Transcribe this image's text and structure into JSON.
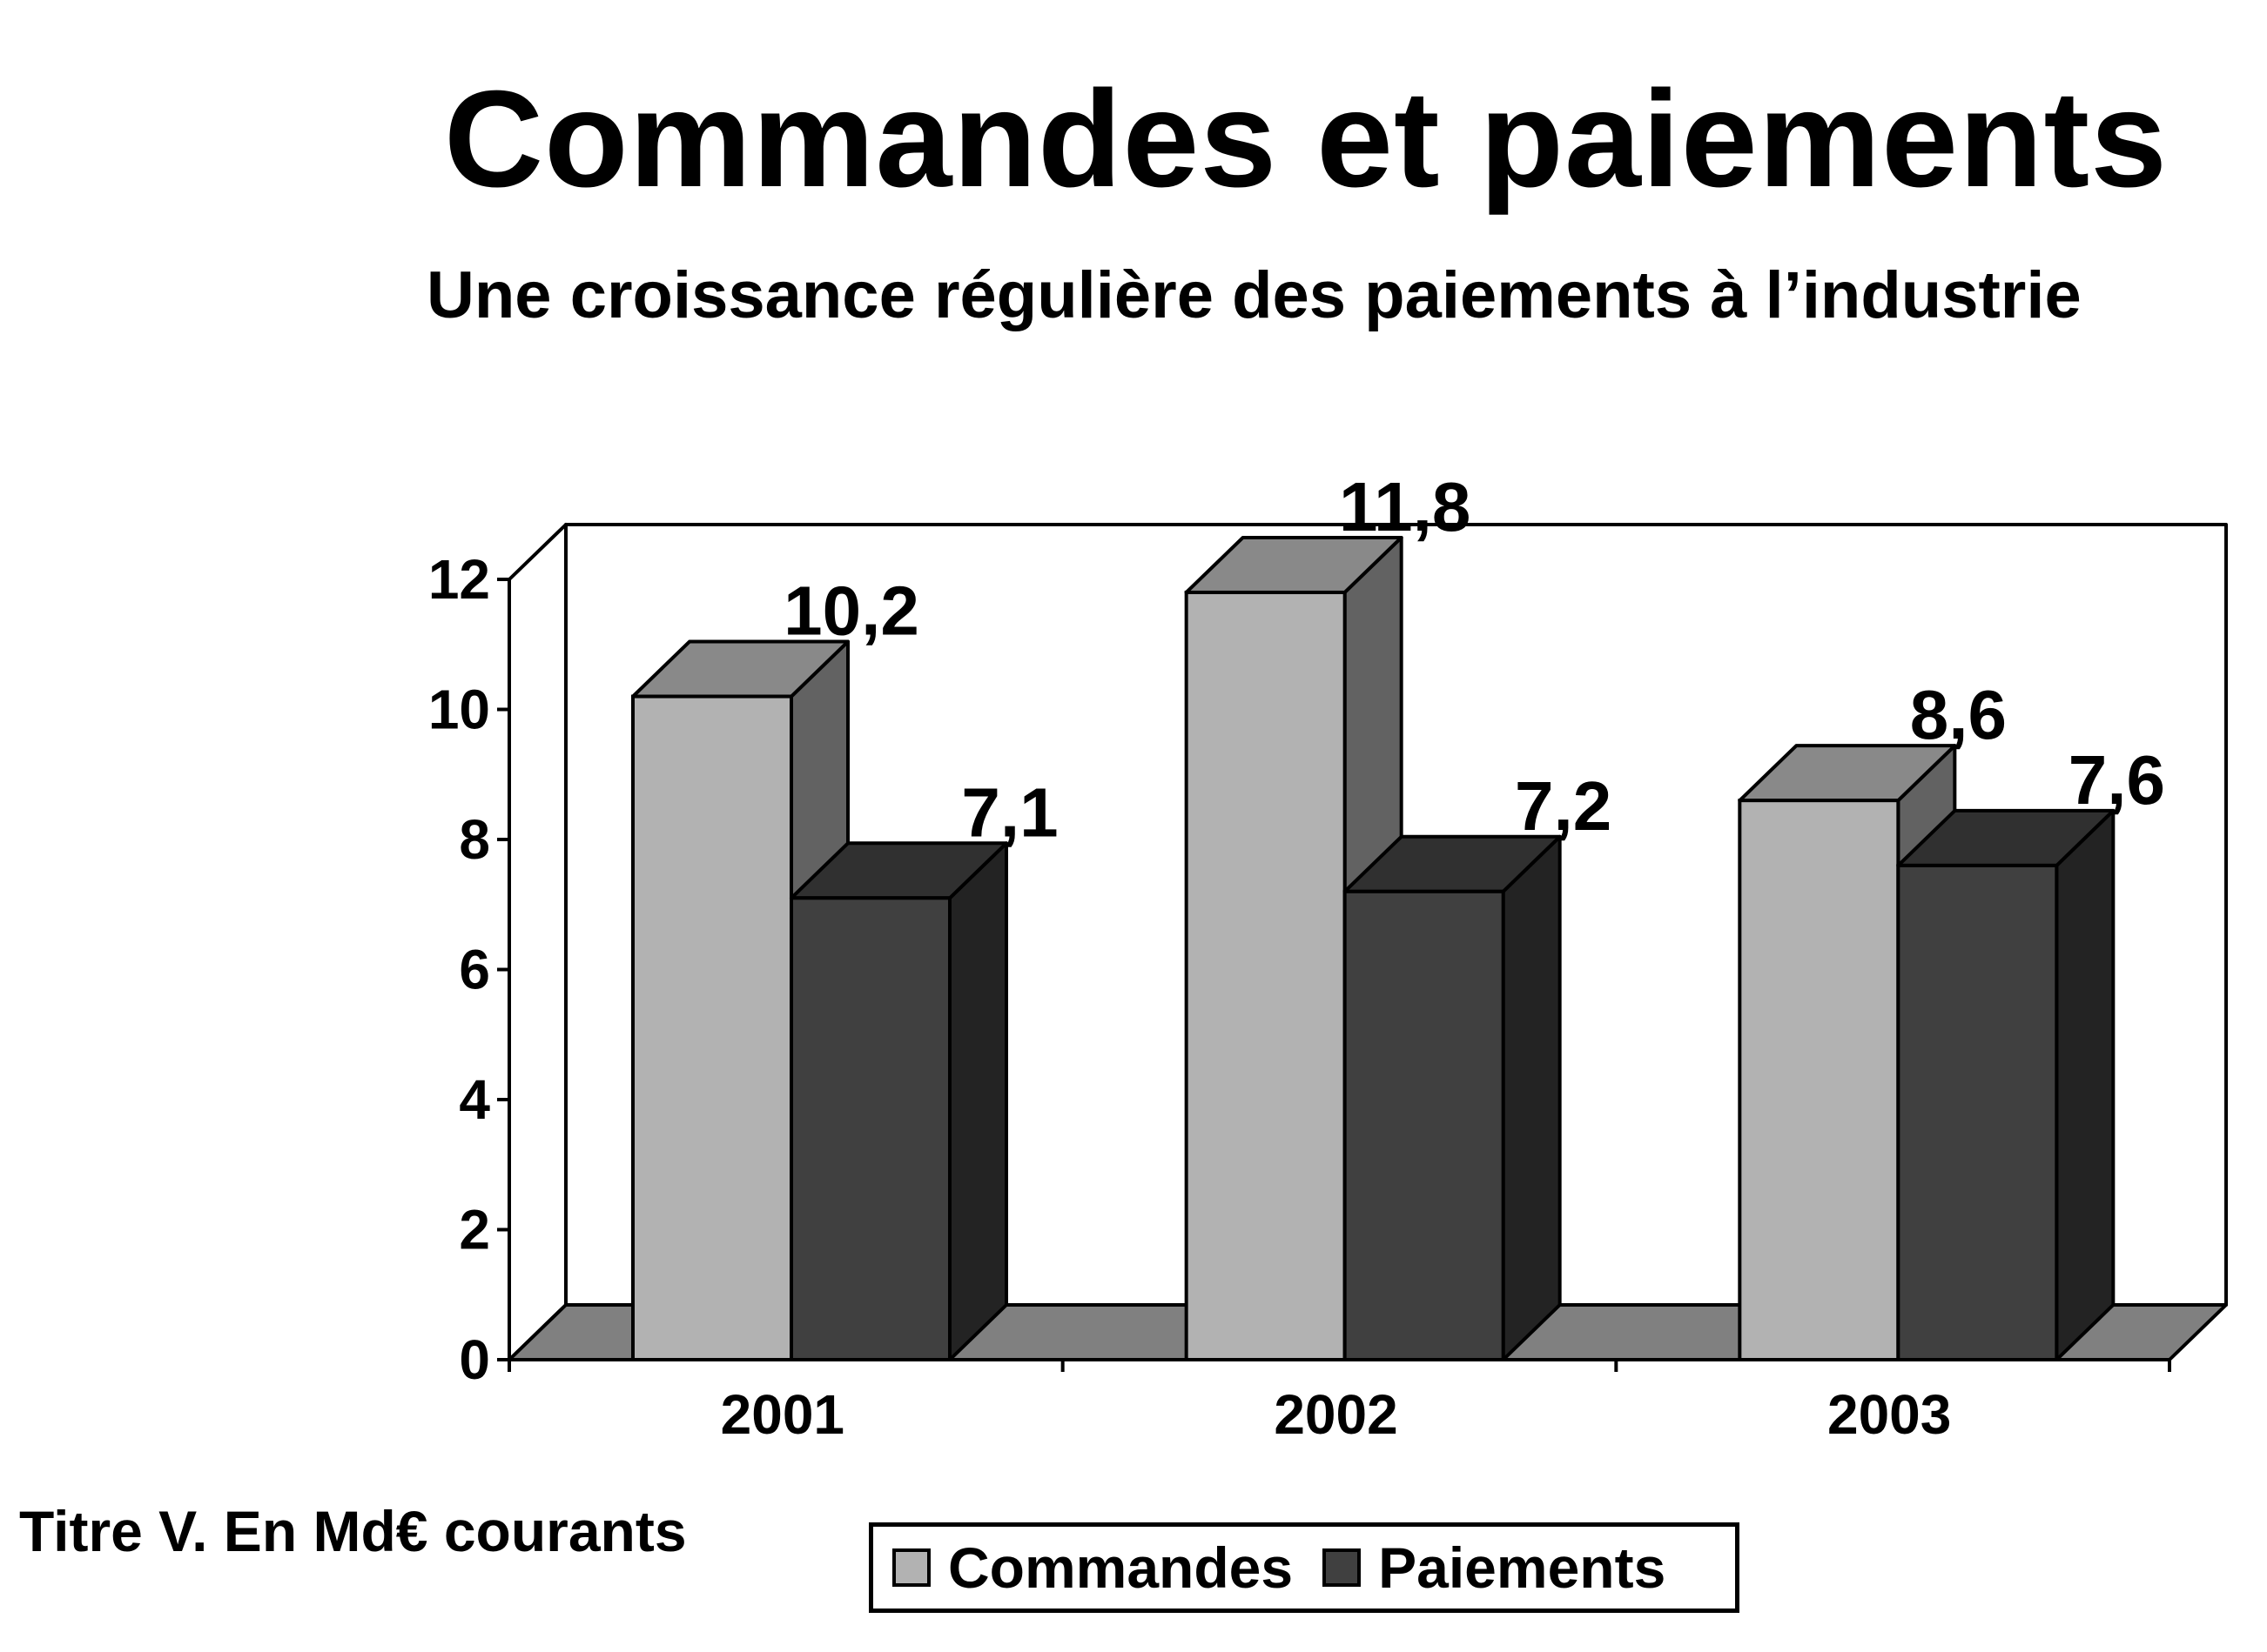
{
  "chart_data": {
    "type": "bar",
    "title": "Commandes et paiements",
    "subtitle": "Une croissance régulière des paiements à l’industrie",
    "note": "Titre V.  En Md€ courants",
    "categories": [
      "2001",
      "2002",
      "2003"
    ],
    "series": [
      {
        "name": "Commandes",
        "values": [
          10.2,
          11.8,
          8.6
        ],
        "labels": [
          "10,2",
          "11,8",
          "8,6"
        ],
        "color": "#b2b2b2"
      },
      {
        "name": "Paiements",
        "values": [
          7.1,
          7.2,
          7.6
        ],
        "labels": [
          "7,1",
          "7,2",
          "7,6"
        ],
        "color": "#404040"
      }
    ],
    "ylim": [
      0,
      12
    ],
    "yticks": [
      0,
      2,
      4,
      6,
      8,
      10,
      12
    ],
    "legend": "bottom",
    "style": "3d-bar",
    "grid": false
  }
}
